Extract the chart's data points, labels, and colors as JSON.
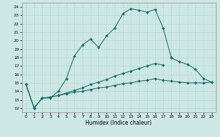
{
  "title": "",
  "xlabel": "Humidex (Indice chaleur)",
  "background_color": "#cde8e4",
  "grid_color": "#b0d8d4",
  "line_color": "#1a6e6e",
  "xlim": [
    -0.5,
    23.5
  ],
  "ylim": [
    11.5,
    24.5
  ],
  "xticks": [
    0,
    1,
    2,
    3,
    4,
    5,
    6,
    7,
    8,
    9,
    10,
    11,
    12,
    13,
    14,
    15,
    16,
    17,
    18,
    19,
    20,
    21,
    22,
    23
  ],
  "yticks": [
    12,
    13,
    14,
    15,
    16,
    17,
    18,
    19,
    20,
    21,
    22,
    23,
    24
  ],
  "line1_x": [
    0,
    1,
    2,
    3,
    4,
    5,
    6,
    7,
    8,
    9,
    10,
    11,
    12,
    13,
    14,
    15,
    16,
    17,
    18
  ],
  "line1_y": [
    14.8,
    12.0,
    13.2,
    13.2,
    14.0,
    15.5,
    18.2,
    19.5,
    20.2,
    19.2,
    20.6,
    21.5,
    23.2,
    23.8,
    23.6,
    23.4,
    23.7,
    21.5,
    18.0
  ],
  "line5_x": [
    18,
    19,
    20,
    21,
    22,
    23
  ],
  "line5_y": [
    18.0,
    17.5,
    17.2,
    16.6,
    15.5,
    15.1
  ],
  "line2_x": [
    0,
    1,
    2,
    3,
    4,
    5,
    6,
    7,
    8,
    9,
    10,
    11,
    12,
    13,
    14,
    15,
    16,
    17
  ],
  "line2_y": [
    14.8,
    12.0,
    13.2,
    13.3,
    13.5,
    13.8,
    14.1,
    14.4,
    14.8,
    15.1,
    15.4,
    15.8,
    16.1,
    16.4,
    16.7,
    17.0,
    17.3,
    17.1
  ],
  "line3_x": [
    0,
    1,
    2,
    3,
    4,
    5,
    6,
    7,
    8,
    9,
    10,
    11,
    12,
    13,
    14,
    15,
    16,
    17,
    18,
    19,
    20,
    21,
    22,
    23
  ],
  "line3_y": [
    14.8,
    12.0,
    13.2,
    13.3,
    13.5,
    13.7,
    13.9,
    14.0,
    14.2,
    14.4,
    14.5,
    14.7,
    14.9,
    15.0,
    15.2,
    15.3,
    15.5,
    15.3,
    15.2,
    15.1,
    15.0,
    15.0,
    15.0,
    15.1
  ]
}
